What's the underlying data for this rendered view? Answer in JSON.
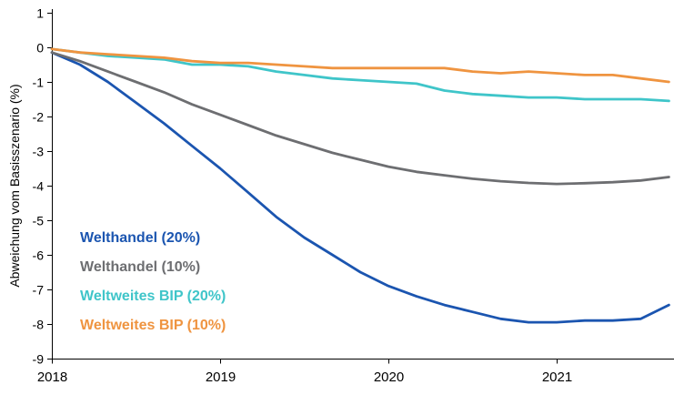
{
  "chart_data": {
    "type": "line",
    "title": "",
    "xlabel": "",
    "ylabel": "Abweichung vom Basisszenario (%)",
    "xlim": [
      2018,
      2021.67
    ],
    "ylim": [
      -9,
      1
    ],
    "xticks": [
      2018,
      2019,
      2020,
      2021
    ],
    "xtick_labels": [
      "2018",
      "2019",
      "2020",
      "2021"
    ],
    "yticks": [
      1,
      0,
      -1,
      -2,
      -3,
      -4,
      -5,
      -6,
      -7,
      -8,
      -9
    ],
    "ytick_labels": [
      "1",
      "0",
      "-1",
      "-2",
      "-3",
      "-4",
      "-5",
      "-6",
      "-7",
      "-8",
      "-9"
    ],
    "grid": false,
    "legend_position": "inside-lower-left",
    "x": [
      2018.0,
      2018.167,
      2018.333,
      2018.5,
      2018.667,
      2018.833,
      2019.0,
      2019.167,
      2019.333,
      2019.5,
      2019.667,
      2019.833,
      2020.0,
      2020.167,
      2020.333,
      2020.5,
      2020.667,
      2020.833,
      2021.0,
      2021.167,
      2021.333,
      2021.5,
      2021.667
    ],
    "series": [
      {
        "name": "Welthandel (20%)",
        "color": "#1b55b0",
        "values": [
          -0.15,
          -0.5,
          -1.0,
          -1.6,
          -2.2,
          -2.85,
          -3.5,
          -4.2,
          -4.9,
          -5.5,
          -6.0,
          -6.5,
          -6.9,
          -7.2,
          -7.45,
          -7.65,
          -7.85,
          -7.95,
          -7.95,
          -7.9,
          -7.9,
          -7.85,
          -7.45
        ]
      },
      {
        "name": "Welthandel (10%)",
        "color": "#6d6e71",
        "values": [
          -0.15,
          -0.4,
          -0.7,
          -1.0,
          -1.3,
          -1.65,
          -1.95,
          -2.25,
          -2.55,
          -2.8,
          -3.05,
          -3.25,
          -3.45,
          -3.6,
          -3.7,
          -3.8,
          -3.87,
          -3.92,
          -3.95,
          -3.93,
          -3.9,
          -3.85,
          -3.75
        ]
      },
      {
        "name": "Weltweites BIP (20%)",
        "color": "#3fc5c9",
        "values": [
          -0.05,
          -0.15,
          -0.25,
          -0.3,
          -0.35,
          -0.5,
          -0.5,
          -0.55,
          -0.7,
          -0.8,
          -0.9,
          -0.95,
          -1.0,
          -1.05,
          -1.25,
          -1.35,
          -1.4,
          -1.45,
          -1.45,
          -1.5,
          -1.5,
          -1.5,
          -1.55
        ]
      },
      {
        "name": "Weltweites BIP (10%)",
        "color": "#ef9440",
        "values": [
          -0.05,
          -0.15,
          -0.2,
          -0.25,
          -0.3,
          -0.4,
          -0.45,
          -0.45,
          -0.5,
          -0.55,
          -0.6,
          -0.6,
          -0.6,
          -0.6,
          -0.6,
          -0.7,
          -0.75,
          -0.7,
          -0.75,
          -0.8,
          -0.8,
          -0.9,
          -1.0
        ]
      }
    ]
  }
}
